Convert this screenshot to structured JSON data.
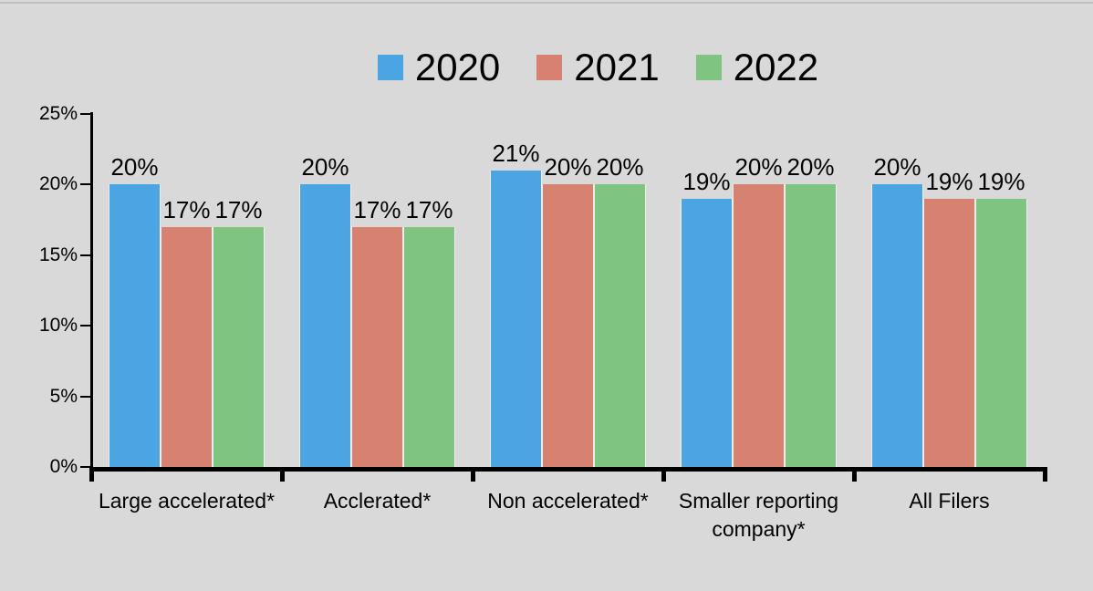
{
  "page": {
    "background_color": "#D9D9D9",
    "top_border_color": "#BEBEBE"
  },
  "chart_data": {
    "type": "bar",
    "title": "",
    "categories": [
      "Large accelerated*",
      "Acclerated*",
      "Non accelerated*",
      "Smaller reporting company*",
      "All Filers"
    ],
    "series": [
      {
        "name": "2020",
        "color": "#4BA5E2",
        "values": [
          20,
          20,
          21,
          19,
          20
        ]
      },
      {
        "name": "2021",
        "color": "#D78270",
        "values": [
          17,
          17,
          20,
          20,
          19
        ]
      },
      {
        "name": "2022",
        "color": "#7FC480",
        "values": [
          17,
          17,
          20,
          20,
          19
        ]
      }
    ],
    "data_labels_shown": true,
    "value_suffix": "%",
    "ylim": [
      0,
      25
    ],
    "y_tick_labels_top_to_bottom": [
      "25%",
      "20%",
      "15%",
      "10%",
      "5%",
      "0%"
    ],
    "grid": false,
    "legend_position": "top",
    "axis_color": "#000000",
    "text_color": "#000000"
  }
}
